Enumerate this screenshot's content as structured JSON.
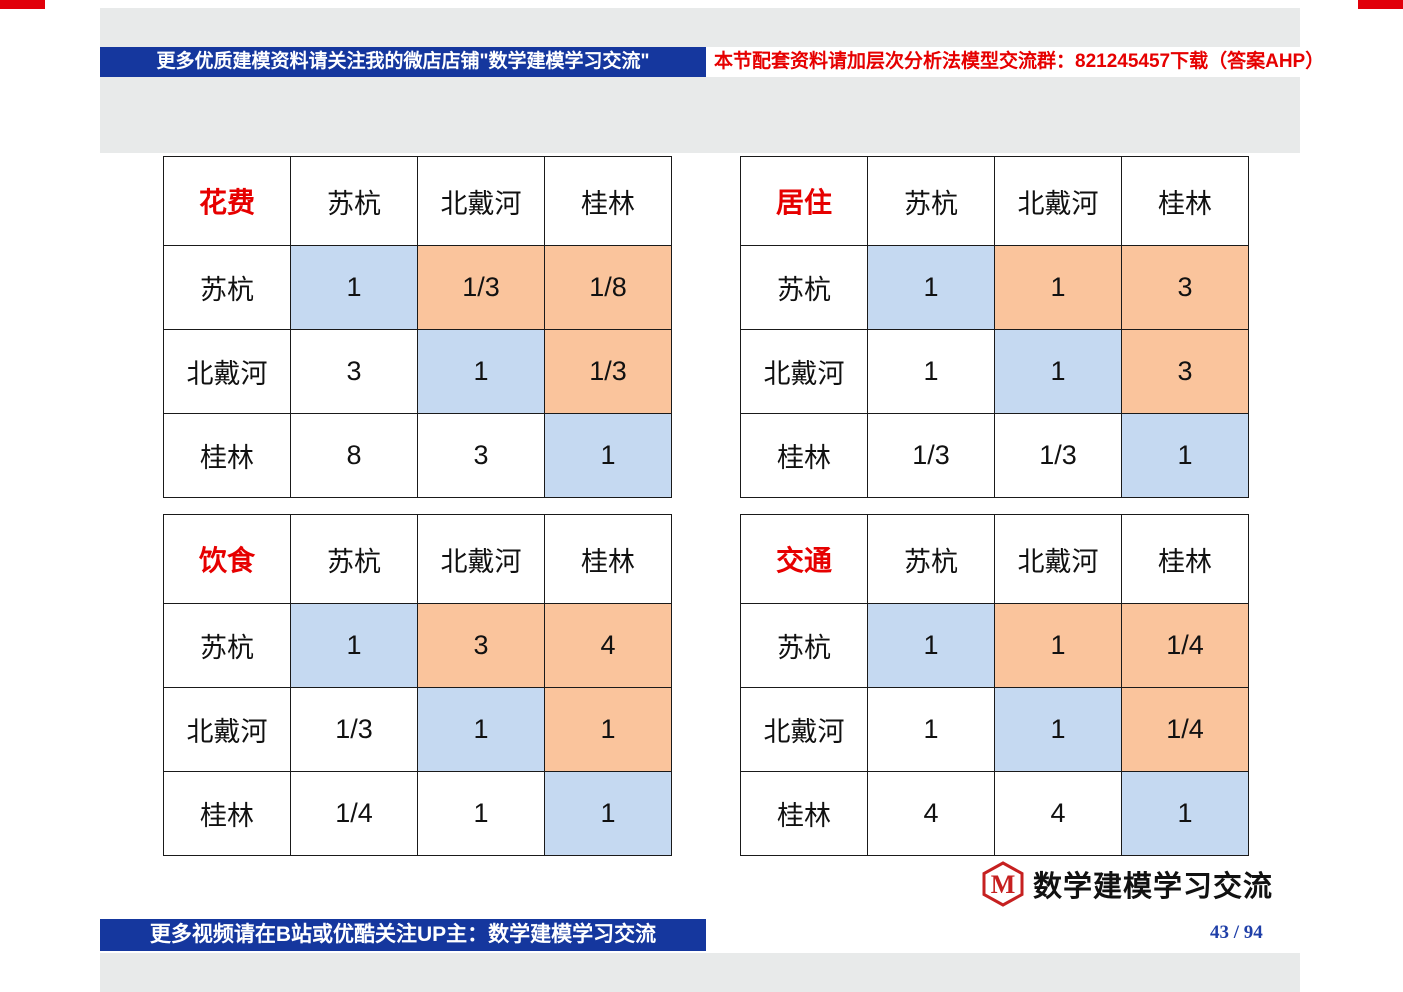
{
  "top_banner": {
    "left_text": "更多优质建模资料请关注我的微店店铺\"数学建模学习交流\"",
    "right_text": "本节配套资料请加层次分析法模型交流群：821245457下载（答案AHP）"
  },
  "bottom_banner": {
    "text": "更多视频请在B站或优酷关注UP主：数学建模学习交流",
    "page_number": "43 / 94"
  },
  "logo": {
    "letter": "M",
    "text": "数学建模学习交流"
  },
  "colors": {
    "banner_blue": "#15379e",
    "diagonal_cell_blue": "#c5d9f1",
    "upper_cell_orange": "#fac49c",
    "title_red": "#e60000",
    "corner_mark_red": "#e1000a"
  },
  "tables": [
    {
      "title": "花费",
      "col_headers": [
        "苏杭",
        "北戴河",
        "桂林"
      ],
      "rows": [
        {
          "label": "苏杭",
          "values": [
            "1",
            "1/3",
            "1/8"
          ]
        },
        {
          "label": "北戴河",
          "values": [
            "3",
            "1",
            "1/3"
          ]
        },
        {
          "label": "桂林",
          "values": [
            "8",
            "3",
            "1"
          ]
        }
      ]
    },
    {
      "title": "居住",
      "col_headers": [
        "苏杭",
        "北戴河",
        "桂林"
      ],
      "rows": [
        {
          "label": "苏杭",
          "values": [
            "1",
            "1",
            "3"
          ]
        },
        {
          "label": "北戴河",
          "values": [
            "1",
            "1",
            "3"
          ]
        },
        {
          "label": "桂林",
          "values": [
            "1/3",
            "1/3",
            "1"
          ]
        }
      ]
    },
    {
      "title": "饮食",
      "col_headers": [
        "苏杭",
        "北戴河",
        "桂林"
      ],
      "rows": [
        {
          "label": "苏杭",
          "values": [
            "1",
            "3",
            "4"
          ]
        },
        {
          "label": "北戴河",
          "values": [
            "1/3",
            "1",
            "1"
          ]
        },
        {
          "label": "桂林",
          "values": [
            "1/4",
            "1",
            "1"
          ]
        }
      ]
    },
    {
      "title": "交通",
      "col_headers": [
        "苏杭",
        "北戴河",
        "桂林"
      ],
      "rows": [
        {
          "label": "苏杭",
          "values": [
            "1",
            "1",
            "1/4"
          ]
        },
        {
          "label": "北戴河",
          "values": [
            "1",
            "1",
            "1/4"
          ]
        },
        {
          "label": "桂林",
          "values": [
            "4",
            "4",
            "1"
          ]
        }
      ]
    }
  ]
}
